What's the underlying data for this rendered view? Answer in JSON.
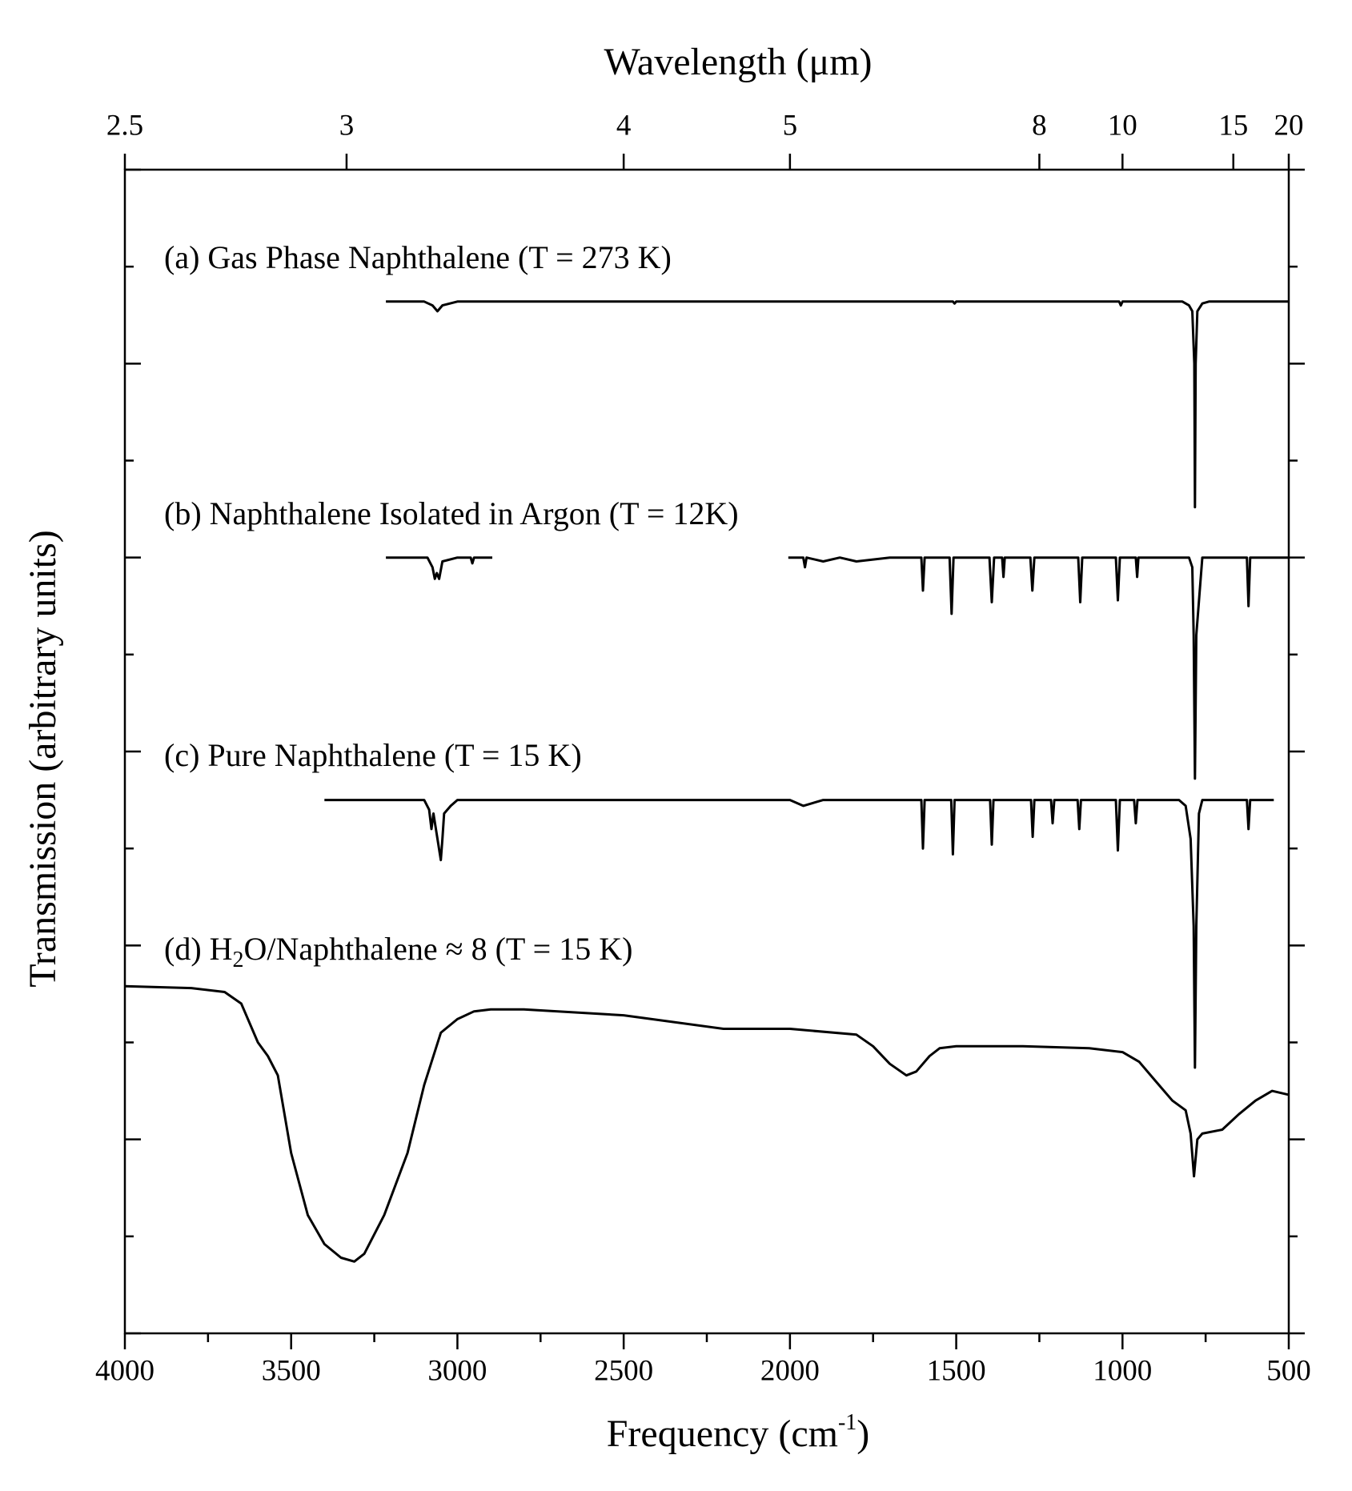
{
  "chart_data": {
    "type": "line",
    "title": "Wavelength (μm)",
    "x_label_parts": [
      "Frequency (cm",
      "-1",
      ")"
    ],
    "y_label": "Transmission (arbitrary units)",
    "xlim": [
      4000,
      500
    ],
    "xticks": [
      4000,
      3500,
      3000,
      2500,
      2000,
      1500,
      1000,
      500
    ],
    "xminorticks": [
      3750,
      3250,
      2750,
      2250,
      1750,
      1250,
      750
    ],
    "x2ticks": [
      2.5,
      3,
      4,
      5,
      8,
      10,
      15,
      20
    ],
    "ylim": [
      0,
      6
    ],
    "yticks": [
      0,
      1,
      2,
      3,
      4,
      5,
      6
    ],
    "yminorticks": [
      0.5,
      1.5,
      2.5,
      3.5,
      4.5,
      5.5
    ],
    "annotations": [
      {
        "text": "(a) Gas Phase Naphthalene (T = 273 K)"
      },
      {
        "text": "(b) Naphthalene Isolated in Argon (T = 12K)"
      },
      {
        "text": "(c) Pure Naphthalene (T = 15 K)"
      },
      {
        "text": "(d) H",
        "sub": "2",
        "rest": "O/Naphthalene ≈ 8  (T = 15 K)"
      }
    ],
    "series": [
      {
        "color": "#000000",
        "x": [
          3215,
          3100,
          3075,
          3060,
          3045,
          3000,
          1510,
          1505,
          1500,
          1010,
          1005,
          1000,
          820,
          800,
          790,
          784,
          782,
          780,
          775,
          760,
          740,
          500
        ],
        "values": [
          5.32,
          5.32,
          5.3,
          5.27,
          5.3,
          5.32,
          5.32,
          5.31,
          5.32,
          5.32,
          5.3,
          5.32,
          5.32,
          5.3,
          5.27,
          5.0,
          4.26,
          5.0,
          5.27,
          5.31,
          5.32,
          5.32
        ]
      },
      {
        "color": "#000000",
        "x": [
          3215,
          3090,
          3075,
          3068,
          3062,
          3055,
          3045,
          3000,
          2960,
          2955,
          2950,
          2895,
          2600,
          2005,
          1960,
          1955,
          1950,
          1900,
          1850,
          1800,
          1700,
          1605,
          1600,
          1595,
          1520,
          1514,
          1508,
          1400,
          1393,
          1386,
          1362,
          1358,
          1354,
          1277,
          1271,
          1265,
          1133,
          1127,
          1121,
          1020,
          1014,
          1008,
          960,
          956,
          952,
          800,
          790,
          786,
          782,
          778,
          760,
          626,
          621,
          616,
          500
        ],
        "values": [
          4.0,
          4.0,
          3.95,
          3.89,
          3.92,
          3.89,
          3.98,
          4.0,
          4.0,
          3.97,
          4.0,
          4.0,
          null,
          4.0,
          4.0,
          3.95,
          4.0,
          3.98,
          4.0,
          3.98,
          4.0,
          4.0,
          3.83,
          4.0,
          4.0,
          3.71,
          4.0,
          4.0,
          3.77,
          4.0,
          4.0,
          3.9,
          4.0,
          4.0,
          3.83,
          4.0,
          4.0,
          3.77,
          4.0,
          4.0,
          3.78,
          4.0,
          4.0,
          3.9,
          4.0,
          4.0,
          3.95,
          3.6,
          2.86,
          3.6,
          4.0,
          4.0,
          3.75,
          4.0,
          4.0
        ]
      },
      {
        "color": "#000000",
        "x": [
          3400,
          3100,
          3085,
          3078,
          3072,
          3060,
          3050,
          3045,
          3040,
          3020,
          3000,
          2950,
          2000,
          1960,
          1900,
          1605,
          1600,
          1595,
          1515,
          1510,
          1505,
          1398,
          1393,
          1388,
          1275,
          1270,
          1265,
          1215,
          1210,
          1205,
          1135,
          1130,
          1125,
          1020,
          1014,
          1008,
          965,
          960,
          955,
          830,
          810,
          795,
          786,
          782,
          778,
          770,
          760,
          626,
          621,
          616,
          545
        ],
        "values": [
          2.75,
          2.75,
          2.7,
          2.6,
          2.68,
          2.55,
          2.44,
          2.55,
          2.68,
          2.72,
          2.75,
          2.75,
          2.75,
          2.72,
          2.75,
          2.75,
          2.5,
          2.75,
          2.75,
          2.47,
          2.75,
          2.75,
          2.52,
          2.75,
          2.75,
          2.56,
          2.75,
          2.75,
          2.63,
          2.75,
          2.75,
          2.6,
          2.75,
          2.75,
          2.49,
          2.75,
          2.75,
          2.63,
          2.75,
          2.75,
          2.72,
          2.55,
          2.1,
          1.37,
          2.1,
          2.68,
          2.75,
          2.75,
          2.6,
          2.75,
          2.75
        ]
      },
      {
        "color": "#000000",
        "x": [
          4000,
          3800,
          3700,
          3650,
          3600,
          3570,
          3540,
          3500,
          3450,
          3400,
          3350,
          3310,
          3280,
          3220,
          3150,
          3100,
          3050,
          3000,
          2950,
          2900,
          2800,
          2500,
          2200,
          2000,
          1800,
          1750,
          1700,
          1650,
          1620,
          1580,
          1550,
          1500,
          1300,
          1100,
          1000,
          950,
          900,
          850,
          810,
          795,
          785,
          775,
          760,
          700,
          650,
          600,
          550,
          500
        ],
        "values": [
          1.79,
          1.78,
          1.76,
          1.7,
          1.5,
          1.43,
          1.33,
          0.93,
          0.61,
          0.46,
          0.39,
          0.37,
          0.41,
          0.61,
          0.93,
          1.28,
          1.55,
          1.62,
          1.66,
          1.67,
          1.67,
          1.64,
          1.57,
          1.57,
          1.54,
          1.48,
          1.39,
          1.33,
          1.35,
          1.43,
          1.47,
          1.48,
          1.48,
          1.47,
          1.45,
          1.4,
          1.3,
          1.2,
          1.15,
          1.03,
          0.81,
          1.0,
          1.03,
          1.05,
          1.13,
          1.2,
          1.25,
          1.23
        ]
      }
    ]
  }
}
